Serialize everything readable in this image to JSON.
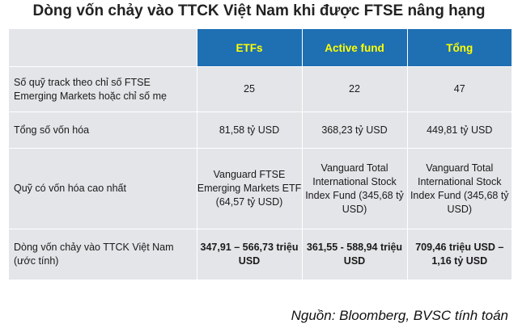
{
  "title": "Dòng vốn chảy vào TTCK Việt Nam khi được FTSE nâng hạng",
  "table": {
    "headers": [
      "",
      "ETFs",
      "Active fund",
      "Tổng"
    ],
    "rows": [
      {
        "label": "Số quỹ track theo chỉ số FTSE Emerging Markets hoặc chỉ số mẹ",
        "cells": [
          "25",
          "22",
          "47"
        ]
      },
      {
        "label": "Tổng số vốn hóa",
        "cells": [
          "81,58 tỷ USD",
          "368,23 tỷ USD",
          "449,81 tỷ USD"
        ]
      },
      {
        "label": "Quỹ có vốn hóa cao nhất",
        "cells": [
          "Vanguard FTSE Emerging Markets ETF (64,57 tỷ USD)",
          "Vanguard Total International Stock Index Fund (345,68 tỷ USD)",
          "Vanguard Total International Stock Index Fund (345,68 tỷ USD)"
        ]
      },
      {
        "label": "Dòng vốn chảy vào TTCK  Việt Nam (ước tính)",
        "cells": [
          "347,91 – 566,73 triệu USD",
          "361,55 - 588,94 triệu USD",
          "709,46 triệu USD – 1,16 tỷ USD"
        ]
      }
    ]
  },
  "source": "Nguồn: Bloomberg, BVSC tính toán",
  "colors": {
    "header_bg": "#1f6fb3",
    "header_text": "#ffff00",
    "cell_bg": "#e3e5e8"
  }
}
